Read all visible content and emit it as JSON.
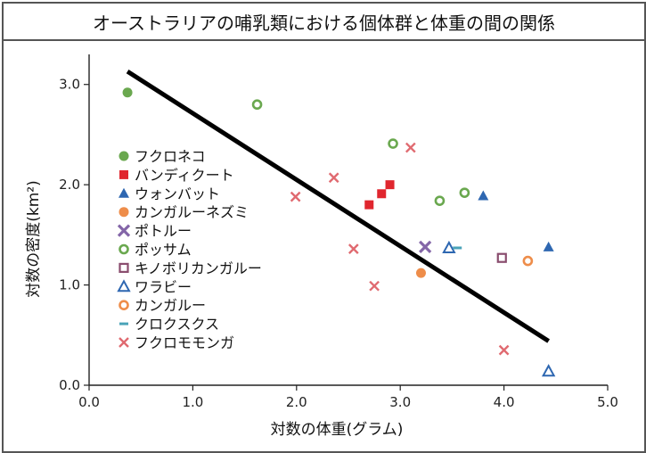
{
  "title": "オーストラリアの哺乳類における個体群と体重の間の関係",
  "chart_data": {
    "type": "scatter",
    "xlabel": "対数の体重(グラム)",
    "ylabel": "対数の密度(km²)",
    "xlim": [
      0.0,
      5.0
    ],
    "ylim": [
      0.0,
      3.3
    ],
    "xticks": [
      "0.0",
      "1.0",
      "2.0",
      "3.0",
      "4.0",
      "5.0"
    ],
    "yticks": [
      "0.0",
      "1.0",
      "2.0",
      "3.0"
    ],
    "grid": false,
    "legend_position": "left",
    "trend_line": {
      "x": [
        0.37,
        4.43
      ],
      "y": [
        3.13,
        0.44
      ],
      "color": "#000000"
    },
    "series": [
      {
        "name": "フクロネコ",
        "marker": "circle",
        "color": "#6aa84f",
        "points": [
          [
            0.37,
            2.92
          ]
        ]
      },
      {
        "name": "バンディクート",
        "marker": "square",
        "color": "#e0262e",
        "points": [
          [
            2.7,
            1.8
          ],
          [
            2.82,
            1.91
          ],
          [
            2.9,
            2.0
          ]
        ]
      },
      {
        "name": "ウォンバット",
        "marker": "triangle",
        "color": "#2e67b1",
        "points": [
          [
            3.8,
            1.89
          ],
          [
            4.43,
            1.38
          ]
        ]
      },
      {
        "name": "カンガルーネズミ",
        "marker": "circle",
        "color": "#ee8d4a",
        "points": [
          [
            3.2,
            1.12
          ]
        ]
      },
      {
        "name": "ポトルー",
        "marker": "x-heavy",
        "color": "#8466a8",
        "points": [
          [
            3.24,
            1.38
          ]
        ]
      },
      {
        "name": "ポッサム",
        "marker": "circle-open",
        "color": "#6aa84f",
        "points": [
          [
            1.62,
            2.8
          ],
          [
            2.93,
            2.41
          ],
          [
            3.38,
            1.84
          ],
          [
            3.62,
            1.92
          ]
        ]
      },
      {
        "name": "キノボリカンガルー",
        "marker": "square-open",
        "color": "#8a4d6e",
        "points": [
          [
            3.98,
            1.27
          ]
        ]
      },
      {
        "name": "ワラビー",
        "marker": "triangle-open",
        "color": "#2e67b1",
        "points": [
          [
            3.47,
            1.37
          ],
          [
            4.43,
            0.14
          ]
        ]
      },
      {
        "name": "カンガルー",
        "marker": "circle-open",
        "color": "#ee8d4a",
        "points": [
          [
            4.23,
            1.24
          ]
        ]
      },
      {
        "name": "クロクスクス",
        "marker": "dash",
        "color": "#4aa3b8",
        "points": [
          [
            3.55,
            1.37
          ]
        ]
      },
      {
        "name": "フクロモモンガ",
        "marker": "x",
        "color": "#e06a70",
        "points": [
          [
            1.99,
            1.88
          ],
          [
            2.36,
            2.07
          ],
          [
            2.55,
            1.36
          ],
          [
            2.75,
            0.99
          ],
          [
            3.1,
            2.37
          ],
          [
            4.0,
            0.35
          ]
        ]
      }
    ]
  }
}
